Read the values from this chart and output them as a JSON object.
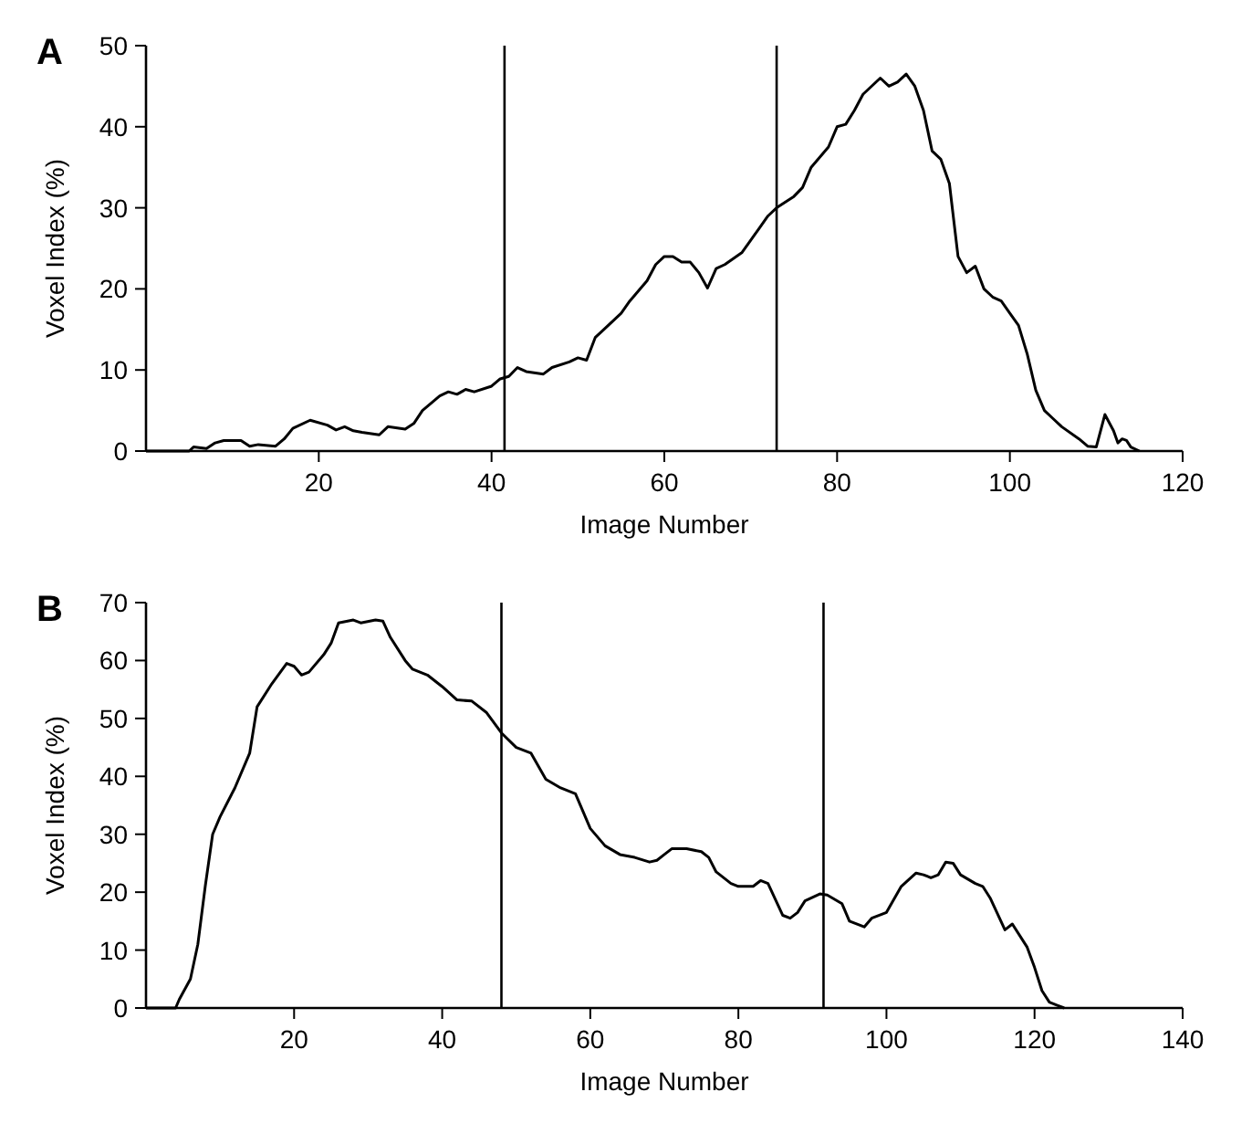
{
  "chart_data": [
    {
      "type": "line",
      "title": "A",
      "xlabel": "Image Number",
      "ylabel": "Voxel Index (%)",
      "xlim": [
        0,
        120
      ],
      "xticks": [
        20,
        40,
        60,
        80,
        100,
        120
      ],
      "ylim": [
        0,
        50
      ],
      "yticks": [
        0,
        10,
        20,
        30,
        40,
        50
      ],
      "grid": false,
      "marker": "none",
      "line_style": "solid",
      "ref_lines": [
        {
          "axis": "x",
          "value": 41.5,
          "color": "#000000"
        },
        {
          "axis": "x",
          "value": 73,
          "color": "#000000"
        }
      ],
      "series": [
        {
          "color": "#000000",
          "x": [
            0,
            5,
            5.5,
            7,
            8,
            9,
            11,
            12,
            13,
            15,
            16,
            17,
            19,
            21,
            22,
            23,
            24,
            25,
            27,
            28,
            30,
            31,
            32,
            34,
            35,
            36,
            37,
            38,
            40,
            41,
            42,
            43,
            44,
            46,
            47,
            49,
            50,
            51,
            52,
            53,
            55,
            56,
            58,
            59,
            60,
            61,
            62,
            63,
            64,
            65,
            66,
            67,
            69,
            70,
            71,
            72,
            73,
            75,
            76,
            77,
            79,
            80,
            81,
            82,
            83,
            85,
            86,
            87,
            88,
            89,
            90,
            91,
            92,
            93,
            94,
            95,
            96,
            97,
            98,
            99,
            100,
            101,
            102,
            103,
            104,
            105,
            106,
            108,
            109,
            110,
            111,
            112,
            112.5,
            113,
            113.5,
            114,
            115
          ],
          "values": [
            0,
            0,
            0.5,
            0.3,
            1,
            1.3,
            1.3,
            0.6,
            0.8,
            0.6,
            1.5,
            2.8,
            3.8,
            3.2,
            2.6,
            3,
            2.5,
            2.3,
            2,
            3,
            2.7,
            3.4,
            5,
            6.8,
            7.3,
            7,
            7.6,
            7.3,
            8,
            8.9,
            9.2,
            10.3,
            9.8,
            9.5,
            10.3,
            11,
            11.5,
            11.2,
            14,
            15,
            17,
            18.5,
            21,
            23,
            24,
            24,
            23.3,
            23.3,
            22,
            20.1,
            22.5,
            23,
            24.5,
            26,
            27.5,
            29,
            30,
            31.4,
            32.5,
            35,
            37.5,
            40,
            40.3,
            42,
            44,
            46,
            45,
            45.5,
            46.5,
            45,
            42,
            37,
            36,
            33,
            24,
            22,
            22.8,
            20,
            19,
            18.5,
            17,
            15.5,
            12,
            7.5,
            5,
            4,
            3,
            1.5,
            0.6,
            0.5,
            4.5,
            2.5,
            1,
            1.5,
            1.3,
            0.5,
            0
          ]
        }
      ]
    },
    {
      "type": "line",
      "title": "B",
      "xlabel": "Image Number",
      "ylabel": "Voxel Index (%)",
      "xlim": [
        0,
        140
      ],
      "xticks": [
        20,
        40,
        60,
        80,
        100,
        120,
        140
      ],
      "ylim": [
        0,
        70
      ],
      "yticks": [
        0,
        10,
        20,
        30,
        40,
        50,
        60,
        70
      ],
      "grid": false,
      "marker": "none",
      "line_style": "solid",
      "ref_lines": [
        {
          "axis": "x",
          "value": 48,
          "color": "#000000"
        },
        {
          "axis": "x",
          "value": 91.5,
          "color": "#000000"
        }
      ],
      "series": [
        {
          "color": "#000000",
          "x": [
            0,
            4,
            4.5,
            6,
            7,
            8,
            9,
            10,
            12,
            14,
            15,
            17,
            19,
            20,
            21,
            22,
            24,
            25,
            26,
            28,
            29,
            31,
            32,
            33,
            35,
            36,
            38,
            40,
            42,
            44,
            46,
            48,
            50,
            52,
            54,
            56,
            58,
            60,
            62,
            64,
            66,
            68,
            69,
            70,
            71,
            73,
            75,
            76,
            77,
            79,
            80,
            82,
            83,
            84,
            86,
            87,
            88,
            89,
            91,
            92,
            94,
            95,
            97,
            98,
            100,
            102,
            104,
            105,
            106,
            107,
            108,
            109,
            110,
            112,
            113,
            114,
            116,
            117,
            119,
            120,
            121,
            122,
            123,
            124
          ],
          "values": [
            0,
            0,
            1.5,
            5,
            11,
            21,
            30,
            33,
            38,
            44,
            52,
            56,
            59.5,
            59,
            57.5,
            58,
            61,
            63,
            66.5,
            67,
            66.5,
            67,
            66.8,
            64,
            60,
            58.5,
            57.5,
            55.5,
            53.2,
            53,
            51,
            47.5,
            45,
            44,
            39.5,
            38,
            37,
            31,
            28,
            26.5,
            26,
            25.2,
            25.5,
            26.5,
            27.5,
            27.5,
            27,
            26,
            23.5,
            21.5,
            21,
            21,
            22,
            21.5,
            16,
            15.5,
            16.5,
            18.5,
            19.7,
            19.5,
            18,
            15,
            14,
            15.5,
            16.5,
            21,
            23.3,
            23,
            22.5,
            23,
            25.2,
            25,
            23,
            21.5,
            21,
            19,
            13.5,
            14.5,
            10.5,
            7,
            3,
            1,
            0.5,
            0
          ]
        }
      ]
    }
  ]
}
